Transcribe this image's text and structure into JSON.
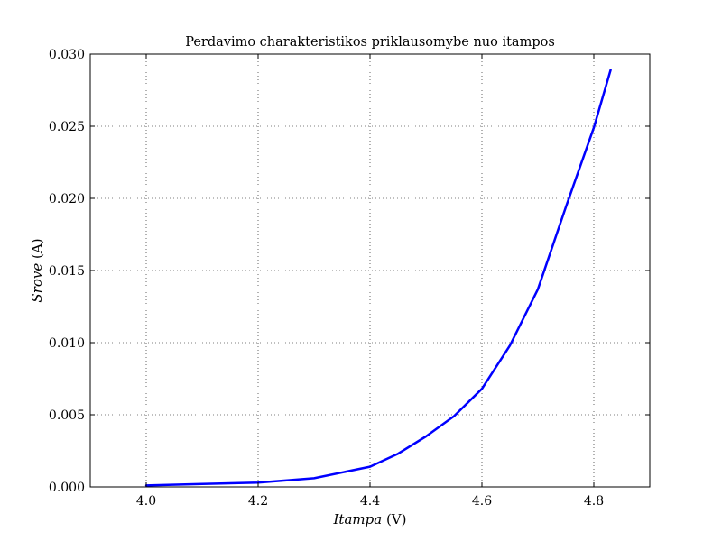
{
  "chart_data": {
    "type": "line",
    "title": "Perdavimo charakteristikos priklausomybe nuo itampos",
    "xlabel": {
      "italic": "Itampa",
      "unit": " (V)"
    },
    "ylabel": {
      "italic": "Srove",
      "unit": " (A)"
    },
    "xlim": [
      3.9,
      4.9
    ],
    "ylim": [
      0.0,
      0.03
    ],
    "x_ticks": [
      "4.0",
      "4.2",
      "4.4",
      "4.6",
      "4.8"
    ],
    "y_ticks": [
      "0.000",
      "0.005",
      "0.010",
      "0.015",
      "0.020",
      "0.025",
      "0.030"
    ],
    "grid": true,
    "grid_style": "dotted",
    "line_color": "#0000ff",
    "series": [
      {
        "x": [
          4.0,
          4.1,
          4.2,
          4.3,
          4.4,
          4.45,
          4.5,
          4.55,
          4.6,
          4.65,
          4.7,
          4.75,
          4.8,
          4.83
        ],
        "y": [
          0.0001,
          0.0002,
          0.0003,
          0.0006,
          0.0014,
          0.0023,
          0.0035,
          0.0049,
          0.0068,
          0.0098,
          0.0137,
          0.0194,
          0.0249,
          0.0289
        ]
      }
    ]
  }
}
